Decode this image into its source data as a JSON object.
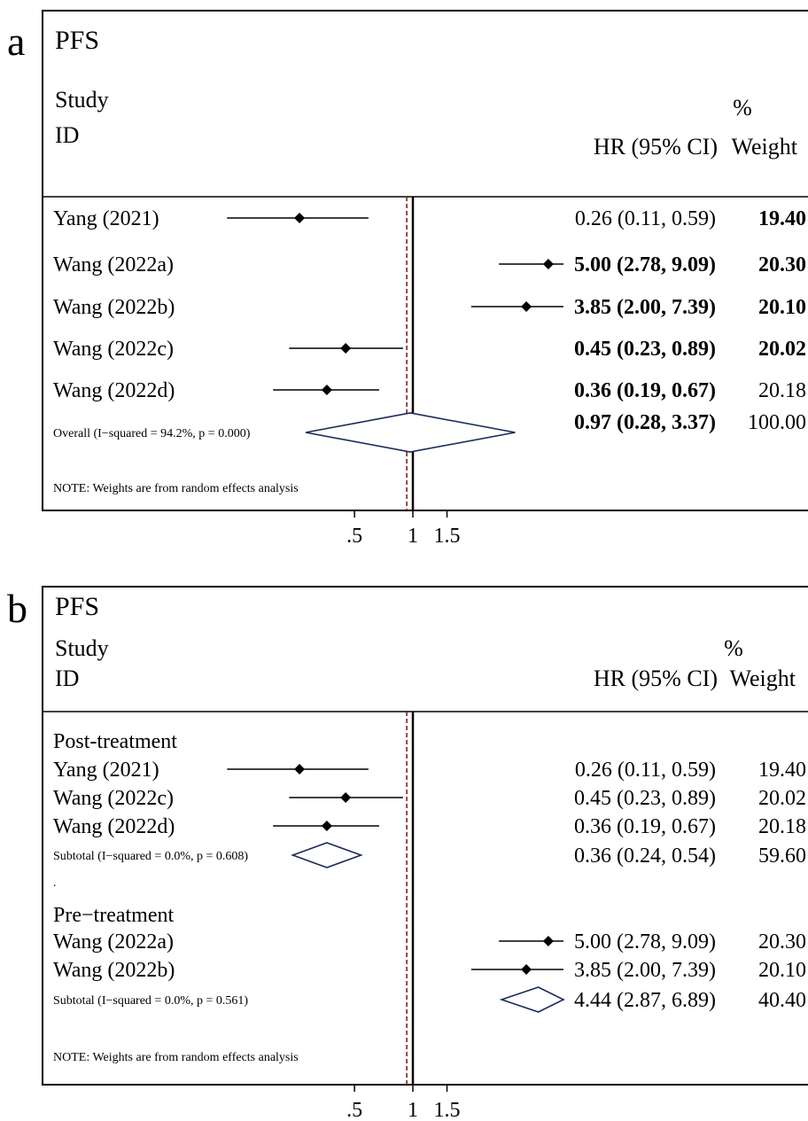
{
  "chart_data": [
    {
      "type": "forest",
      "panel_label": "a",
      "title": "PFS",
      "header": {
        "study": "Study",
        "id": "ID",
        "pct": "%",
        "hrci": "HR (95% CI)",
        "weight": "Weight"
      },
      "rows": [
        {
          "kind": "study",
          "label": "Yang (2021)",
          "hr": 0.26,
          "lo": 0.11,
          "hi": 0.59,
          "hr_text": "0.26 (0.11, 0.59)",
          "weight_text": "19.40"
        },
        {
          "kind": "study",
          "label": "Wang (2022a)",
          "hr": 5.0,
          "lo": 2.78,
          "hi": 9.09,
          "hr_text": "5.00 (2.78, 9.09)",
          "weight_text": "20.30"
        },
        {
          "kind": "study",
          "label": "Wang (2022b)",
          "hr": 3.85,
          "lo": 2.0,
          "hi": 7.39,
          "hr_text": "3.85 (2.00, 7.39)",
          "weight_text": "20.10"
        },
        {
          "kind": "study",
          "label": "Wang (2022c)",
          "hr": 0.45,
          "lo": 0.23,
          "hi": 0.89,
          "hr_text": "0.45 (0.23, 0.89)",
          "weight_text": "20.02"
        },
        {
          "kind": "study",
          "label": "Wang (2022d)",
          "hr": 0.36,
          "lo": 0.19,
          "hi": 0.67,
          "hr_text": "0.36 (0.19, 0.67)",
          "weight_text": "20.18"
        },
        {
          "kind": "overall",
          "label": "Overall  (I−squared = 94.2%, p = 0.000)",
          "hr": 0.97,
          "lo": 0.28,
          "hi": 3.37,
          "hr_text": "0.97 (0.28, 3.37)",
          "weight_text": "100.00"
        }
      ],
      "note": "NOTE: Weights are from random effects analysis",
      "ticks": [
        ".5",
        "1",
        "1.5"
      ],
      "null_line": 1,
      "overall_line": 0.97,
      "x_scale": "log"
    },
    {
      "type": "forest",
      "panel_label": "b",
      "title": "PFS",
      "header": {
        "study": "Study",
        "id": "ID",
        "pct": "%",
        "hrci": "HR (95% CI)",
        "weight": "Weight"
      },
      "rows": [
        {
          "kind": "group",
          "label": "Post-treatment"
        },
        {
          "kind": "study",
          "label": "Yang (2021)",
          "hr": 0.26,
          "lo": 0.11,
          "hi": 0.59,
          "hr_text": "0.26 (0.11, 0.59)",
          "weight_text": "19.40"
        },
        {
          "kind": "study",
          "label": "Wang (2022c)",
          "hr": 0.45,
          "lo": 0.23,
          "hi": 0.89,
          "hr_text": "0.45 (0.23, 0.89)",
          "weight_text": "20.02"
        },
        {
          "kind": "study",
          "label": "Wang (2022d)",
          "hr": 0.36,
          "lo": 0.19,
          "hi": 0.67,
          "hr_text": "0.36 (0.19, 0.67)",
          "weight_text": "20.18"
        },
        {
          "kind": "subtotal",
          "label": "Subtotal  (I−squared = 0.0%, p = 0.608)",
          "hr": 0.36,
          "lo": 0.24,
          "hi": 0.54,
          "hr_text": "0.36 (0.24, 0.54)",
          "weight_text": "59.60"
        },
        {
          "kind": "dot",
          "label": "."
        },
        {
          "kind": "group",
          "label": "Pre−treatment"
        },
        {
          "kind": "study",
          "label": "Wang (2022a)",
          "hr": 5.0,
          "lo": 2.78,
          "hi": 9.09,
          "hr_text": "5.00 (2.78, 9.09)",
          "weight_text": "20.30"
        },
        {
          "kind": "study",
          "label": "Wang (2022b)",
          "hr": 3.85,
          "lo": 2.0,
          "hi": 7.39,
          "hr_text": "3.85 (2.00, 7.39)",
          "weight_text": "20.10"
        },
        {
          "kind": "subtotal",
          "label": "Subtotal  (I−squared = 0.0%, p = 0.561)",
          "hr": 4.44,
          "lo": 2.87,
          "hi": 6.89,
          "hr_text": "4.44 (2.87, 6.89)",
          "weight_text": "40.40"
        }
      ],
      "note": "NOTE: Weights are from random effects analysis",
      "ticks": [
        ".5",
        "1",
        "1.5"
      ],
      "null_line": 1,
      "overall_line": 0.97,
      "x_scale": "log"
    }
  ],
  "colors": {
    "line": "#000000",
    "diamond": "#1c2a5c",
    "overall_line": "#8b1a1a"
  }
}
